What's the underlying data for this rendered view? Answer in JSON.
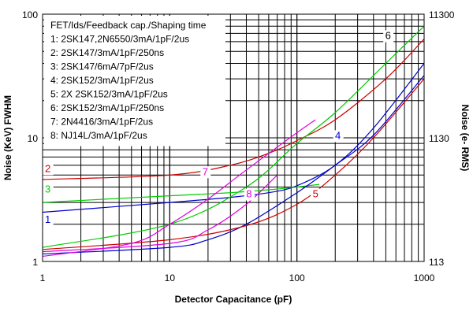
{
  "chart_data": {
    "type": "line",
    "xscale": "log",
    "yscale": "log",
    "xlim": [
      1,
      1000
    ],
    "ylim": [
      1,
      100
    ],
    "y2lim": [
      113,
      11300
    ],
    "xticks": [
      "1",
      "10",
      "100",
      "1000"
    ],
    "yticks": [
      "1",
      "10",
      "100"
    ],
    "y2ticks": [
      "113",
      "1130",
      "11300"
    ],
    "xlabel": "Detector Capacitance (pF)",
    "ylabel": "Noise (KeV) FWHM",
    "y2label": "Noise (e- RMS)",
    "grid": true,
    "legend_position": "top-left",
    "legend_title": "FET/Ids/Feedback cap./Shaping time",
    "colors": {
      "grid": "#000000",
      "red": "#cc0000",
      "green": "#00cc00",
      "blue": "#0000cc",
      "magenta": "#e000e0",
      "darkred": "#a00000",
      "darkblue": "#000099",
      "purple": "#800080"
    },
    "series": [
      {
        "name": "1: 2SK147,2N6550/3mA/1pF/2us",
        "label": "1",
        "color": "#0000cc",
        "x": [
          1,
          10,
          30,
          60,
          100,
          200,
          400,
          1000
        ],
        "y": [
          2.5,
          3.0,
          3.3,
          3.6,
          4.1,
          6.0,
          12.0,
          40.0
        ]
      },
      {
        "name": "2: 2SK147/3mA/1pF/250ns",
        "label": "2",
        "color": "#cc0000",
        "x": [
          1,
          10,
          30,
          60,
          100,
          200,
          500,
          1000
        ],
        "y": [
          4.6,
          5.0,
          6.0,
          7.5,
          9.5,
          14.0,
          30.0,
          63.0
        ]
      },
      {
        "name": "3: 2SK147/6mA/7pF/2us",
        "label": "3",
        "color": "#00cc00",
        "x": [
          1,
          10,
          30,
          60,
          100,
          150
        ],
        "y": [
          3.0,
          3.4,
          3.6,
          3.8,
          4.0,
          4.2
        ]
      },
      {
        "name": "4: 2SK152/3mA/1pF/2us",
        "label": "4",
        "color": "#0000cc",
        "x": [
          1,
          10,
          20,
          40,
          100,
          200,
          400,
          1000
        ],
        "y": [
          1.15,
          1.3,
          1.5,
          2.0,
          3.6,
          6.0,
          10.5,
          32.0
        ]
      },
      {
        "name": "5: 2X 2SK152/3mA/1pF/2us",
        "label": "5",
        "color": "#cc0000",
        "x": [
          1,
          10,
          40,
          100,
          200,
          400,
          1000
        ],
        "y": [
          1.25,
          1.5,
          1.95,
          2.9,
          5.0,
          10.0,
          30.0
        ]
      },
      {
        "name": "6: 2SK152/3mA/1pF/250ns",
        "label": "6",
        "color": "#00cc00",
        "x": [
          1,
          10,
          40,
          100,
          200,
          500,
          1000
        ],
        "y": [
          1.3,
          2.0,
          4.0,
          9.0,
          16.0,
          40.0,
          80.0
        ]
      },
      {
        "name": "7: 2N4416/3mA/1pF/2us",
        "label": "7",
        "color": "#e000e0",
        "x": [
          1,
          5,
          10,
          20,
          40,
          100,
          140
        ],
        "y": [
          1.1,
          1.4,
          2.0,
          3.2,
          5.5,
          11.0,
          14.0
        ]
      },
      {
        "name": "8: NJ14L/3mA/1pF/2us",
        "label": "8",
        "color": "#e000e0",
        "x": [
          1,
          10,
          20,
          40,
          70
        ],
        "y": [
          1.2,
          1.4,
          1.8,
          2.9,
          5.0
        ]
      }
    ]
  }
}
